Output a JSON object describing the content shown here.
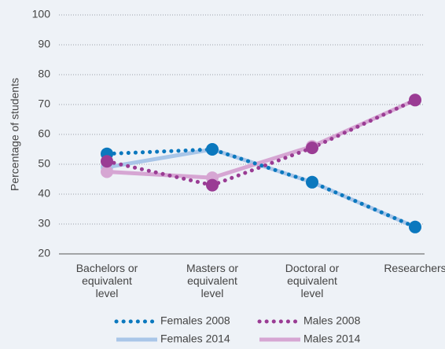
{
  "chart_data": {
    "type": "line",
    "y_label": "Percentage of students",
    "categories": [
      "Bachelors or\nequivalent\nlevel",
      "Masters or\nequivalent\nlevel",
      "Doctoral or\nequivalent\nlevel",
      "Researchers"
    ],
    "series": [
      {
        "name": "Females 2014",
        "color": "#a9c6e8",
        "style": "solid",
        "values": [
          49,
          55,
          44,
          29
        ]
      },
      {
        "name": "Males 2014",
        "color": "#d6a6d3",
        "style": "solid",
        "values": [
          47.5,
          45.5,
          56,
          71.5
        ]
      },
      {
        "name": "Females 2008",
        "color": "#0b78be",
        "style": "dotted",
        "values": [
          53.5,
          55,
          44,
          29
        ]
      },
      {
        "name": "Males 2008",
        "color": "#9a3c94",
        "style": "dotted",
        "values": [
          51,
          43,
          55.5,
          71.5
        ]
      }
    ],
    "ylim": [
      20,
      100
    ],
    "yticks": [
      20,
      30,
      40,
      50,
      60,
      70,
      80,
      90,
      100
    ],
    "grid": true
  }
}
